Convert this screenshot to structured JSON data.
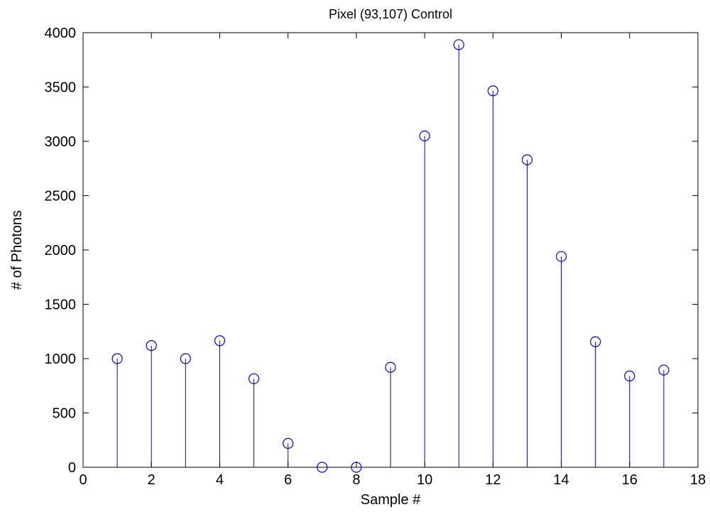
{
  "chart_data": {
    "type": "stem",
    "title": "Pixel (93,107) Control",
    "xlabel": "Sample #",
    "ylabel": "# of Photons",
    "xlim": [
      0,
      18
    ],
    "ylim": [
      0,
      4000
    ],
    "xticks": [
      0,
      2,
      4,
      6,
      8,
      10,
      12,
      14,
      16,
      18
    ],
    "yticks": [
      0,
      500,
      1000,
      1500,
      2000,
      2500,
      3000,
      3500,
      4000
    ],
    "grid": false,
    "marker": "circle",
    "color": "#0000ff",
    "x": [
      1,
      2,
      3,
      4,
      5,
      6,
      7,
      8,
      9,
      10,
      11,
      12,
      13,
      14,
      15,
      16,
      17
    ],
    "y": [
      1000,
      1120,
      1000,
      1165,
      815,
      220,
      0,
      0,
      920,
      3050,
      3890,
      3465,
      2830,
      1940,
      1155,
      840,
      895
    ]
  }
}
